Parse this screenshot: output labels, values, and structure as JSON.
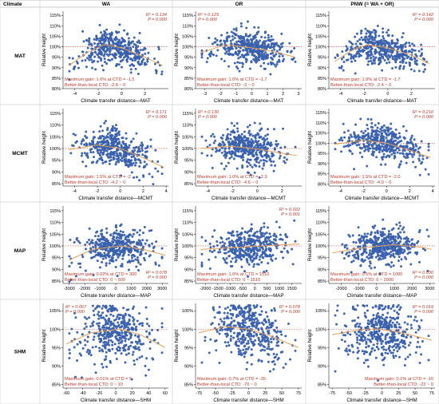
{
  "header": {
    "climate_label": "Climate",
    "columns": [
      "WA",
      "OR",
      "PNW (= WA + OR)"
    ]
  },
  "rows": [
    "MAT",
    "MCMT",
    "MAP",
    "SHM"
  ],
  "y_axis_label": "Relative height",
  "chart_data": [
    {
      "type": "scatter",
      "row": "MAT",
      "column": "WA",
      "xlabel": "Climate transfer distance—MAT",
      "ylabel": "Relative height",
      "xlim": [
        -5,
        4
      ],
      "ylim": [
        80,
        117
      ],
      "xticks": [
        -4,
        -2,
        0,
        2
      ],
      "yticks": [
        80,
        85,
        90,
        95,
        100,
        105,
        110,
        115
      ],
      "r2": "R² = 0.134",
      "p": "P = 0.000",
      "stat_pos": "top-right",
      "annotation": [
        "Maximum gain: 1.0% at CTD = -1.5",
        "Better-than-local CTD: -2.8 ~ 0"
      ],
      "ann_pos": "bottom-left",
      "fit": [
        [
          -4.5,
          91
        ],
        [
          -3,
          97
        ],
        [
          -1.5,
          101
        ],
        [
          0,
          99.5
        ],
        [
          2,
          95
        ],
        [
          3.5,
          91
        ]
      ],
      "seed": 11
    },
    {
      "type": "scatter",
      "row": "MAT",
      "column": "OR",
      "xlabel": "Climate transfer distance—MAT",
      "ylabel": "Relative height",
      "xlim": [
        -3.6,
        3.2
      ],
      "ylim": [
        80,
        117
      ],
      "xticks": [
        -3,
        -2,
        -1,
        0,
        1,
        2,
        3
      ],
      "yticks": [
        80,
        85,
        90,
        95,
        100,
        105,
        110,
        115
      ],
      "r2": "R² = 0.125",
      "p": "P = 0.000",
      "stat_pos": "top-left",
      "annotation": [
        "Maximum gain: 1.0% at CTD = -1.7",
        "Better-than-local CTD: -3 ~ 0"
      ],
      "ann_pos": "bottom-left",
      "fit": [
        [
          -3.3,
          97
        ],
        [
          -1.7,
          101
        ],
        [
          0,
          99.5
        ],
        [
          1.5,
          97.5
        ],
        [
          2.8,
          95
        ]
      ],
      "seed": 23
    },
    {
      "type": "scatter",
      "row": "MAT",
      "column": "PNW (= WA + OR)",
      "xlabel": "Climate transfer distance—MAT",
      "ylabel": "Relative height",
      "xlim": [
        -5,
        4
      ],
      "ylim": [
        80,
        117
      ],
      "xticks": [
        -4,
        -2,
        0,
        2
      ],
      "yticks": [
        80,
        85,
        90,
        95,
        100,
        105,
        110,
        115
      ],
      "r2": "R² = 0.142",
      "p": "P = 0.000",
      "stat_pos": "top-right",
      "annotation": [
        "Maximum gain: 1.0% at CTD = -1.7",
        "Better-than-local CTD: -2.4 ~ 0"
      ],
      "ann_pos": "bottom-left",
      "fit": [
        [
          -4.5,
          93
        ],
        [
          -3,
          98.5
        ],
        [
          -1.7,
          101
        ],
        [
          0,
          99.5
        ],
        [
          2,
          96
        ],
        [
          3.5,
          92
        ]
      ],
      "seed": 37
    },
    {
      "type": "scatter",
      "row": "MCMT",
      "column": "WA",
      "xlabel": "Climate transfer distance—MCMT",
      "ylabel": "Relative height",
      "xlim": [
        -5,
        4.2
      ],
      "ylim": [
        84,
        117
      ],
      "xticks": [
        -4,
        -2,
        0,
        2,
        4
      ],
      "yticks": [
        85,
        90,
        95,
        100,
        105,
        110,
        115
      ],
      "r2": "R² = 0.171",
      "p": "P = 0.000",
      "stat_pos": "top-right",
      "annotation": [
        "Maximum gain: 1.5% at CTD = -2",
        "Better-than-local CTD: -4.2 ~ 0"
      ],
      "ann_pos": "bottom-left",
      "fit": [
        [
          -4.5,
          99.5
        ],
        [
          -2,
          101.5
        ],
        [
          0,
          100
        ],
        [
          2,
          96
        ],
        [
          3.8,
          92
        ]
      ],
      "seed": 41
    },
    {
      "type": "scatter",
      "row": "MCMT",
      "column": "OR",
      "xlabel": "Climate transfer distance—MCMT",
      "ylabel": "Relative height",
      "xlim": [
        -5,
        3.6
      ],
      "ylim": [
        84,
        117
      ],
      "xticks": [
        -4,
        -2,
        0,
        2
      ],
      "yticks": [
        85,
        90,
        95,
        100,
        105,
        110,
        115
      ],
      "r2": "R² = 0.130",
      "p": "P = 0.000",
      "stat_pos": "top-left",
      "annotation": [
        "Maximum gain: 1.0% at CTD = -2.3",
        "Better-than-local CTD: -4.6 ~ 0"
      ],
      "ann_pos": "bottom-left",
      "fit": [
        [
          -4.6,
          100
        ],
        [
          -2.3,
          101
        ],
        [
          0,
          99.8
        ],
        [
          2,
          98
        ],
        [
          3.2,
          97
        ]
      ],
      "seed": 53
    },
    {
      "type": "scatter",
      "row": "MCMT",
      "column": "PNW (= WA + OR)",
      "xlabel": "Climate transfer distance—MCMT",
      "ylabel": "Relative height",
      "xlim": [
        -5,
        4.2
      ],
      "ylim": [
        79,
        117
      ],
      "xticks": [
        -4,
        -2,
        0,
        2,
        4
      ],
      "yticks": [
        80,
        85,
        90,
        95,
        100,
        105,
        110,
        115
      ],
      "r2": "R² = 0.210",
      "p": "P = 0.000",
      "stat_pos": "top-right",
      "annotation": [
        "Maximum gain: 1.5% at CTD = -2.0",
        "Better-than-local CTD: -4.0 ~ 0"
      ],
      "ann_pos": "bottom-left",
      "fit": [
        [
          -4.5,
          99.5
        ],
        [
          -2,
          101.5
        ],
        [
          0,
          100
        ],
        [
          2,
          96.5
        ],
        [
          3.8,
          93
        ]
      ],
      "seed": 67
    },
    {
      "type": "scatter",
      "row": "MAP",
      "column": "WA",
      "xlabel": "Climate transfer distance—MAP",
      "ylabel": "Relative height",
      "xlim": [
        -3400,
        3400
      ],
      "ylim": [
        84,
        117
      ],
      "xticks": [
        -3000,
        -2000,
        -1000,
        0,
        1000,
        2000,
        3000
      ],
      "yticks": [
        85,
        90,
        95,
        100,
        105,
        110,
        115
      ],
      "r2": "R² = 0.078",
      "p": "P = 0.000",
      "stat_pos": "bottom-right",
      "annotation": [
        "Maximum gain: 0.02% at CTD = 300",
        "Better-than-local CTD: 0 ~ 600"
      ],
      "ann_pos": "bottom-left",
      "fit": [
        [
          -3000,
          94
        ],
        [
          -1500,
          98.5
        ],
        [
          300,
          100
        ],
        [
          1800,
          98.5
        ],
        [
          3200,
          96
        ]
      ],
      "seed": 71
    },
    {
      "type": "scatter",
      "row": "MAP",
      "column": "OR",
      "xlabel": "Climate transfer distance—MAP",
      "ylabel": "Relative height",
      "xlim": [
        -2400,
        1900
      ],
      "ylim": [
        84,
        117
      ],
      "xticks": [
        -2000,
        -1500,
        -1000,
        -500,
        0,
        500,
        1000,
        1500
      ],
      "yticks": [
        85,
        90,
        95,
        100,
        105,
        110,
        115
      ],
      "r2": "R² = 0.022",
      "p": "P = 0.001",
      "stat_pos": "top-right",
      "annotation": [
        "Maximum gain: 1.0% at CTD = 1510",
        "Better-than-local CTD: 0 ~ 1510"
      ],
      "ann_pos": "bottom-left",
      "fit": [
        [
          -2200,
          98.5
        ],
        [
          -1000,
          99.2
        ],
        [
          0,
          99.8
        ],
        [
          1000,
          100.4
        ],
        [
          1800,
          100.8
        ]
      ],
      "seed": 83
    },
    {
      "type": "scatter",
      "row": "MAP",
      "column": "PNW (= WA + OR)",
      "xlabel": "Climate transfer distance—MAP",
      "ylabel": "Relative height",
      "xlim": [
        -2700,
        3300
      ],
      "ylim": [
        84,
        117
      ],
      "xticks": [
        -2000,
        -1000,
        0,
        1000,
        2000,
        3000
      ],
      "yticks": [
        85,
        90,
        95,
        100,
        105,
        110,
        115
      ],
      "r2": "R² = 0.030",
      "p": "P = 0.000",
      "stat_pos": "bottom-right",
      "annotation": [
        "Maximum gain: 0.5% at CTD = 1000",
        "Better-than-local CTD: 0 ~ 2000"
      ],
      "ann_pos": "bottom-left",
      "fit": [
        [
          -2500,
          97
        ],
        [
          -1000,
          99
        ],
        [
          1000,
          100.5
        ],
        [
          2500,
          99.5
        ],
        [
          3100,
          98.5
        ]
      ],
      "seed": 97
    },
    {
      "type": "scatter",
      "row": "SHM",
      "column": "WA",
      "xlabel": "Climate transfer distance—SHM",
      "ylabel": "Relative height",
      "xlim": [
        -64,
        64
      ],
      "ylim": [
        84,
        107
      ],
      "xticks": [
        -60,
        -40,
        -20,
        0,
        20,
        40,
        60
      ],
      "yticks": [
        85,
        90,
        95,
        100,
        105
      ],
      "r2": "R² = 0.067",
      "p": "P = 0.000",
      "stat_pos": "top-left",
      "annotation": [
        "Maximum gain: 0.01% at CTD = 5",
        "Better-than-local CTD: 0 ~ 10"
      ],
      "ann_pos": "bottom-left",
      "fit": [
        [
          -60,
          96
        ],
        [
          -30,
          99
        ],
        [
          5,
          100
        ],
        [
          30,
          98.5
        ],
        [
          60,
          95
        ]
      ],
      "seed": 101
    },
    {
      "type": "scatter",
      "row": "SHM",
      "column": "OR",
      "xlabel": "Climate transfer distance—SHM",
      "ylabel": "Relative height",
      "xlim": [
        -80,
        80
      ],
      "ylim": [
        84,
        107
      ],
      "xticks": [
        -75,
        -50,
        -25,
        0,
        25,
        50,
        75
      ],
      "yticks": [
        85,
        90,
        95,
        100,
        105
      ],
      "r2": "R² = 0.078",
      "p": "P = 0.000",
      "stat_pos": "top-right",
      "annotation": [
        "Maximum gain: 0.7% at CTD = -35",
        "Better-than-local CTD: -70 ~ 0"
      ],
      "ann_pos": "bottom-left",
      "fit": [
        [
          -75,
          99
        ],
        [
          -35,
          100.7
        ],
        [
          0,
          100
        ],
        [
          35,
          98
        ],
        [
          75,
          95
        ]
      ],
      "seed": 113
    },
    {
      "type": "scatter",
      "row": "SHM",
      "column": "PNW (= WA + OR)",
      "xlabel": "Climate transfer distance—SHM",
      "ylabel": "Relative height",
      "xlim": [
        -80,
        80
      ],
      "ylim": [
        84,
        107
      ],
      "xticks": [
        -75,
        -50,
        -25,
        0,
        25,
        50,
        75
      ],
      "yticks": [
        85,
        90,
        95,
        100,
        105
      ],
      "r2": "R² = 0.019",
      "p": "P = 0.000",
      "stat_pos": "top-right",
      "annotation": [
        "Maximum gain: 0.1% at CTD = -10",
        "Better-than-local CTD: -22 ~ 0"
      ],
      "ann_pos": "bottom-right",
      "fit": [
        [
          -75,
          98.5
        ],
        [
          -35,
          99.8
        ],
        [
          -10,
          100.1
        ],
        [
          25,
          99.2
        ],
        [
          75,
          97
        ]
      ],
      "seed": 127
    }
  ]
}
